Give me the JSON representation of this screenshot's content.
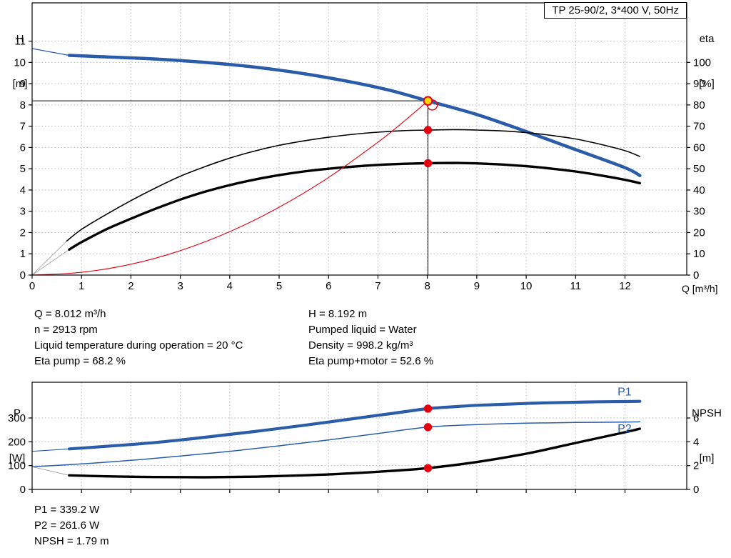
{
  "axis_headers": {
    "top_left_1": "H",
    "top_left_2": "[m]",
    "top_right_1": "eta",
    "top_right_2": "[%]",
    "x_label": "Q [m³/h]",
    "bottom_left_1": "P",
    "bottom_left_2": "[W]",
    "bottom_right_1": "NPSH",
    "bottom_right_2": "[m]"
  },
  "info_top_left": {
    "lines": [
      "Q = 8.012 m³/h",
      "n = 2913 rpm",
      "Liquid temperature during operation = 20 °C",
      "Eta pump = 68.2 %"
    ]
  },
  "info_top_right": {
    "lines": [
      "H = 8.192 m",
      "Pumped liquid = Water",
      "Density = 998.2 kg/m³",
      "Eta pump+motor = 52.6 %"
    ]
  },
  "info_bottom": {
    "lines": [
      "P1 = 339.2 W",
      "P2 = 261.6 W",
      "NPSH = 1.79 m"
    ]
  },
  "colors": {
    "curve_blue": "#2a5caa",
    "curve_black": "#000000",
    "curve_red": "#e3000f",
    "lead": "#9a9a9a",
    "marker_yellow": "#ffd400",
    "grid": "#b4b4b4"
  },
  "chart_data": [
    {
      "id": "qh-eta",
      "type": "line",
      "title": "TP 25-90/2, 3*400 V, 50Hz",
      "x_axis": {
        "min": 0,
        "max": 13.25,
        "ticks": [
          0,
          1,
          2,
          3,
          4,
          5,
          6,
          7,
          8,
          9,
          10,
          11,
          12
        ],
        "label": "Q [m³/h]"
      },
      "y_left": {
        "min": 0,
        "max": 12.8,
        "ticks": [
          0,
          1,
          2,
          3,
          4,
          5,
          6,
          7,
          8,
          9,
          10,
          11
        ],
        "label": "H [m]"
      },
      "y_right": {
        "min": 0,
        "max": 128,
        "ticks": [
          0,
          10,
          20,
          30,
          40,
          50,
          60,
          70,
          80,
          90,
          100
        ],
        "label": "eta [%]"
      },
      "grid": true,
      "series": [
        {
          "name": "qh-curve-lead",
          "axis": "left",
          "color_key": "curve_blue",
          "width": 1.2,
          "points": [
            [
              0,
              10.65
            ],
            [
              0.75,
              10.33
            ]
          ]
        },
        {
          "name": "qh-curve",
          "axis": "left",
          "color_key": "curve_blue",
          "width": 4.5,
          "points": [
            [
              0.75,
              10.33
            ],
            [
              1.5,
              10.26
            ],
            [
              2.5,
              10.16
            ],
            [
              3.5,
              10.0
            ],
            [
              4.5,
              9.78
            ],
            [
              5.5,
              9.47
            ],
            [
              6.5,
              9.06
            ],
            [
              7.25,
              8.68
            ],
            [
              8.012,
              8.192
            ],
            [
              9,
              7.55
            ],
            [
              10,
              6.75
            ],
            [
              11,
              5.9
            ],
            [
              12,
              5.05
            ],
            [
              12.3,
              4.68
            ]
          ]
        },
        {
          "name": "eta-pump-lead",
          "axis": "right",
          "color_key": "lead",
          "width": 0.8,
          "points": [
            [
              0,
              0
            ],
            [
              0.7,
              16
            ]
          ]
        },
        {
          "name": "eta-pump-curve",
          "axis": "right",
          "color_key": "curve_black",
          "width": 1.6,
          "points": [
            [
              0.7,
              16
            ],
            [
              1,
              21.5
            ],
            [
              1.5,
              28.5
            ],
            [
              2,
              35
            ],
            [
              2.5,
              41
            ],
            [
              3,
              46.5
            ],
            [
              3.5,
              51
            ],
            [
              4,
              55
            ],
            [
              4.5,
              58.3
            ],
            [
              5,
              61
            ],
            [
              5.5,
              63.1
            ],
            [
              6,
              64.8
            ],
            [
              6.5,
              66.2
            ],
            [
              7,
              67.2
            ],
            [
              7.5,
              67.9
            ],
            [
              8.012,
              68.2
            ],
            [
              8.6,
              68.4
            ],
            [
              9,
              68.2
            ],
            [
              9.5,
              67.8
            ],
            [
              10,
              67
            ],
            [
              10.5,
              65.7
            ],
            [
              11,
              64
            ],
            [
              11.5,
              61.5
            ],
            [
              12,
              58.5
            ],
            [
              12.3,
              55.8
            ]
          ]
        },
        {
          "name": "eta-pump-motor-lead",
          "axis": "right",
          "color_key": "lead",
          "width": 0.8,
          "points": [
            [
              0,
              0
            ],
            [
              0.75,
              12
            ]
          ]
        },
        {
          "name": "eta-pump-motor-curve",
          "axis": "right",
          "color_key": "curve_black",
          "width": 3.4,
          "points": [
            [
              0.75,
              12
            ],
            [
              1,
              15.5
            ],
            [
              1.5,
              21.5
            ],
            [
              2,
              26.5
            ],
            [
              2.5,
              31.2
            ],
            [
              3,
              35.5
            ],
            [
              3.5,
              39.2
            ],
            [
              4,
              42.3
            ],
            [
              4.5,
              44.9
            ],
            [
              5,
              47
            ],
            [
              5.5,
              48.7
            ],
            [
              6,
              50
            ],
            [
              6.5,
              51
            ],
            [
              7,
              51.8
            ],
            [
              7.5,
              52.3
            ],
            [
              8.012,
              52.6
            ],
            [
              8.6,
              52.7
            ],
            [
              9,
              52.5
            ],
            [
              9.5,
              52
            ],
            [
              10,
              51.2
            ],
            [
              10.5,
              50.1
            ],
            [
              11,
              48.7
            ],
            [
              11.5,
              46.9
            ],
            [
              12,
              44.8
            ],
            [
              12.3,
              43.2
            ]
          ]
        },
        {
          "name": "system-curve",
          "axis": "left",
          "color_key": "curve_red",
          "width": 1.1,
          "points": [
            [
              0,
              0
            ],
            [
              1,
              0.13
            ],
            [
              2,
              0.51
            ],
            [
              3,
              1.15
            ],
            [
              4,
              2.04
            ],
            [
              5,
              3.19
            ],
            [
              6,
              4.59
            ],
            [
              7,
              6.25
            ],
            [
              7.5,
              7.18
            ],
            [
              8.012,
              8.19
            ]
          ]
        }
      ],
      "lines": [
        {
          "name": "duty-h-line",
          "axis": "left",
          "width": 1,
          "points": [
            [
              0,
              8.192
            ],
            [
              8.012,
              8.192
            ]
          ]
        },
        {
          "name": "duty-q-line",
          "axis": "left",
          "width": 1,
          "points": [
            [
              8.012,
              8.192
            ],
            [
              8.012,
              0
            ]
          ]
        }
      ],
      "markers": [
        {
          "name": "system-curve-circle",
          "axis": "left",
          "q": 8.1,
          "v": 8.0,
          "r": 7,
          "stroke_key": "curve_red"
        },
        {
          "name": "duty-point",
          "axis": "left",
          "q": 8.012,
          "v": 8.192,
          "r": 5.8,
          "fill_key": "marker_yellow",
          "stroke_key": "curve_red"
        },
        {
          "name": "eta-pump-point",
          "axis": "right",
          "q": 8.012,
          "v": 68.2,
          "r": 5,
          "fill_key": "curve_red",
          "stroke_key": "curve_red"
        },
        {
          "name": "eta-pump-motor-point",
          "axis": "right",
          "q": 8.012,
          "v": 52.6,
          "r": 5,
          "fill_key": "curve_red",
          "stroke_key": "curve_red"
        }
      ]
    },
    {
      "id": "power-npsh",
      "type": "line",
      "x_axis": {
        "min": 0,
        "max": 13.25,
        "ticks": [
          0,
          1,
          2,
          3,
          4,
          5,
          6,
          7,
          8,
          9,
          10,
          11,
          12
        ],
        "label": ""
      },
      "y_left": {
        "min": 0,
        "max": 450,
        "ticks": [
          0,
          100,
          200,
          300
        ],
        "label": "P [W]"
      },
      "y_right": {
        "min": 0,
        "max": 9,
        "ticks": [
          0,
          2,
          4,
          6
        ],
        "label": "NPSH [m]"
      },
      "grid": true,
      "series": [
        {
          "name": "p1-curve-lead",
          "axis": "left",
          "color_key": "curve_blue",
          "width": 1.2,
          "points": [
            [
              0,
              160
            ],
            [
              0.75,
              170
            ]
          ]
        },
        {
          "name": "p1-curve",
          "axis": "left",
          "color_key": "curve_blue",
          "width": 4.2,
          "points": [
            [
              0.75,
              170
            ],
            [
              1.5,
              181
            ],
            [
              2.5,
              197
            ],
            [
              3.5,
              219
            ],
            [
              4.5,
              243
            ],
            [
              5.5,
              269
            ],
            [
              6.5,
              297
            ],
            [
              7.25,
              318
            ],
            [
              8.012,
              339.2
            ],
            [
              8.6,
              348
            ],
            [
              9,
              353
            ],
            [
              9.5,
              357
            ],
            [
              10,
              361
            ],
            [
              10.5,
              364
            ],
            [
              11,
              366
            ],
            [
              11.5,
              368
            ],
            [
              12,
              369
            ],
            [
              12.3,
              370
            ]
          ]
        },
        {
          "name": "p2-curve",
          "axis": "left",
          "color_key": "curve_blue",
          "width": 1.5,
          "points": [
            [
              0,
              95
            ],
            [
              1,
              107
            ],
            [
              2,
              122
            ],
            [
              3,
              140
            ],
            [
              4,
              160
            ],
            [
              5,
              183
            ],
            [
              6,
              208
            ],
            [
              7,
              235
            ],
            [
              8.012,
              261.6
            ],
            [
              9,
              272
            ],
            [
              10,
              278
            ],
            [
              11,
              281
            ],
            [
              12,
              283
            ],
            [
              12.3,
              284
            ]
          ]
        },
        {
          "name": "npsh-curve-lead",
          "axis": "right",
          "color_key": "lead",
          "width": 0.8,
          "points": [
            [
              0,
              1.9
            ],
            [
              0.75,
              1.18
            ]
          ]
        },
        {
          "name": "npsh-curve",
          "axis": "right",
          "color_key": "curve_black",
          "width": 3.4,
          "points": [
            [
              0.75,
              1.18
            ],
            [
              1.5,
              1.1
            ],
            [
              2.5,
              1.04
            ],
            [
              3.5,
              1.02
            ],
            [
              4.5,
              1.07
            ],
            [
              5.5,
              1.18
            ],
            [
              6.5,
              1.36
            ],
            [
              7.25,
              1.55
            ],
            [
              8.012,
              1.79
            ],
            [
              9,
              2.3
            ],
            [
              10,
              3.0
            ],
            [
              11,
              3.9
            ],
            [
              12,
              4.8
            ],
            [
              12.3,
              5.1
            ]
          ]
        }
      ],
      "lines": [],
      "markers": [
        {
          "name": "p1-point",
          "axis": "left",
          "q": 8.012,
          "v": 339.2,
          "r": 5,
          "fill_key": "curve_red",
          "stroke_key": "curve_red"
        },
        {
          "name": "p2-point",
          "axis": "left",
          "q": 8.012,
          "v": 261.6,
          "r": 5,
          "fill_key": "curve_red",
          "stroke_key": "curve_red"
        },
        {
          "name": "npsh-point",
          "axis": "right",
          "q": 8.012,
          "v": 1.79,
          "r": 5,
          "fill_key": "curve_red",
          "stroke_key": "curve_red"
        }
      ],
      "annotations": [
        {
          "name": "p1-label",
          "text": "P1",
          "axis": "left",
          "q": 11.85,
          "v": 395,
          "color_key": "curve_blue"
        },
        {
          "name": "p2-label",
          "text": "P2",
          "axis": "left",
          "q": 11.85,
          "v": 240,
          "color_key": "curve_blue"
        }
      ]
    }
  ]
}
